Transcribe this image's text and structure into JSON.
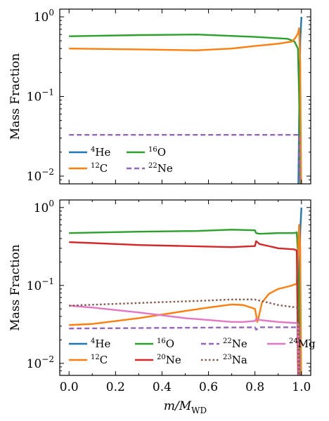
{
  "figure": {
    "xlabel_main": "m/M",
    "xlabel_sub": "WD"
  },
  "colors": {
    "He4": "#1f77b4",
    "C12": "#ff7f0e",
    "O16": "#2ca02c",
    "Ne22": "#9467bd",
    "Ne20": "#d62728",
    "Na23": "#8c564b",
    "Mg24": "#e377c2"
  },
  "chart_data": [
    {
      "type": "line",
      "ylabel": "Mass Fraction",
      "yscale": "log",
      "ylim": [
        0.008,
        1.25
      ],
      "xlim": [
        -0.04,
        1.04
      ],
      "x_ticks": [
        "0.0",
        "0.2",
        "0.4",
        "0.6",
        "0.8",
        "1.0"
      ],
      "y_ticks": [
        {
          "value": 1,
          "base": "10",
          "exp": "0"
        },
        {
          "value": 0.1,
          "base": "10",
          "exp": "−1"
        },
        {
          "value": 0.01,
          "base": "10",
          "exp": "−2"
        }
      ],
      "legend_position": "lower-left",
      "legend_columns": 2,
      "series": [
        {
          "key": "He4",
          "mass": "4",
          "element": "He",
          "dash": "solid",
          "points": [
            [
              0.0,
              0.0
            ],
            [
              0.985,
              0.0
            ],
            [
              0.99,
              0.05
            ],
            [
              0.995,
              0.5
            ],
            [
              1.0,
              1.0
            ]
          ]
        },
        {
          "key": "O16",
          "mass": "16",
          "element": "O",
          "dash": "solid",
          "points": [
            [
              0.0,
              0.57
            ],
            [
              0.3,
              0.59
            ],
            [
              0.55,
              0.6
            ],
            [
              0.8,
              0.56
            ],
            [
              0.94,
              0.53
            ],
            [
              0.97,
              0.49
            ],
            [
              0.985,
              0.4
            ],
            [
              0.99,
              0.1
            ],
            [
              0.995,
              0.01
            ],
            [
              1.0,
              0.0
            ]
          ]
        },
        {
          "key": "C12",
          "mass": "12",
          "element": "C",
          "dash": "solid",
          "points": [
            [
              0.0,
              0.4
            ],
            [
              0.3,
              0.39
            ],
            [
              0.55,
              0.38
            ],
            [
              0.7,
              0.4
            ],
            [
              0.8,
              0.43
            ],
            [
              0.9,
              0.46
            ],
            [
              0.96,
              0.49
            ],
            [
              0.975,
              0.55
            ],
            [
              0.985,
              0.62
            ],
            [
              0.99,
              0.72
            ],
            [
              0.995,
              0.25
            ],
            [
              1.0,
              0.0
            ]
          ]
        },
        {
          "key": "Ne22",
          "mass": "22",
          "element": "Ne",
          "dash": "dashed",
          "points": [
            [
              0.0,
              0.033
            ],
            [
              0.985,
              0.033
            ],
            [
              0.99,
              0.033
            ],
            [
              0.995,
              0.003
            ]
          ]
        }
      ]
    },
    {
      "type": "line",
      "ylabel": "Mass Fraction",
      "yscale": "log",
      "ylim": [
        0.007,
        1.25
      ],
      "xlim": [
        -0.04,
        1.04
      ],
      "x_ticks": [
        "0.0",
        "0.2",
        "0.4",
        "0.6",
        "0.8",
        "1.0"
      ],
      "y_ticks": [
        {
          "value": 1,
          "base": "10",
          "exp": "0"
        },
        {
          "value": 0.1,
          "base": "10",
          "exp": "−1"
        },
        {
          "value": 0.01,
          "base": "10",
          "exp": "−2"
        }
      ],
      "legend_position": "lower-left",
      "legend_columns": 4,
      "series": [
        {
          "key": "He4",
          "mass": "4",
          "element": "He",
          "dash": "solid",
          "points": [
            [
              0.0,
              0.0
            ],
            [
              0.985,
              0.0
            ],
            [
              0.99,
              0.05
            ],
            [
              0.995,
              0.5
            ],
            [
              1.0,
              1.0
            ]
          ]
        },
        {
          "key": "O16",
          "mass": "16",
          "element": "O",
          "dash": "solid",
          "points": [
            [
              0.0,
              0.47
            ],
            [
              0.3,
              0.49
            ],
            [
              0.55,
              0.5
            ],
            [
              0.7,
              0.52
            ],
            [
              0.8,
              0.51
            ],
            [
              0.805,
              0.47
            ],
            [
              0.82,
              0.46
            ],
            [
              0.9,
              0.47
            ],
            [
              0.97,
              0.47
            ],
            [
              0.98,
              0.48
            ],
            [
              0.985,
              0.25
            ],
            [
              0.99,
              0.05
            ],
            [
              0.995,
              0.01
            ],
            [
              1.0,
              0.0
            ]
          ]
        },
        {
          "key": "C12",
          "mass": "12",
          "element": "C",
          "dash": "solid",
          "points": [
            [
              0.0,
              0.031
            ],
            [
              0.1,
              0.032
            ],
            [
              0.3,
              0.038
            ],
            [
              0.5,
              0.047
            ],
            [
              0.6,
              0.052
            ],
            [
              0.7,
              0.057
            ],
            [
              0.75,
              0.056
            ],
            [
              0.8,
              0.05
            ],
            [
              0.805,
              0.042
            ],
            [
              0.81,
              0.034
            ],
            [
              0.815,
              0.038
            ],
            [
              0.83,
              0.06
            ],
            [
              0.86,
              0.078
            ],
            [
              0.9,
              0.09
            ],
            [
              0.95,
              0.098
            ],
            [
              0.98,
              0.105
            ],
            [
              0.985,
              0.25
            ],
            [
              0.99,
              0.6
            ],
            [
              0.995,
              0.3
            ],
            [
              1.0,
              0.0
            ]
          ]
        },
        {
          "key": "Ne20",
          "mass": "20",
          "element": "Ne",
          "dash": "solid",
          "points": [
            [
              0.0,
              0.36
            ],
            [
              0.1,
              0.35
            ],
            [
              0.3,
              0.33
            ],
            [
              0.5,
              0.32
            ],
            [
              0.7,
              0.31
            ],
            [
              0.8,
              0.32
            ],
            [
              0.805,
              0.37
            ],
            [
              0.82,
              0.34
            ],
            [
              0.9,
              0.3
            ],
            [
              0.97,
              0.29
            ],
            [
              0.98,
              0.28
            ],
            [
              0.985,
              0.01
            ],
            [
              0.99,
              0.0
            ]
          ]
        },
        {
          "key": "Ne22",
          "mass": "22",
          "element": "Ne",
          "dash": "dashed",
          "points": [
            [
              0.0,
              0.028
            ],
            [
              0.8,
              0.029
            ],
            [
              0.805,
              0.027
            ],
            [
              0.82,
              0.029
            ],
            [
              0.985,
              0.029
            ],
            [
              0.99,
              0.029
            ],
            [
              0.995,
              0.002
            ]
          ]
        },
        {
          "key": "Mg24",
          "mass": "24",
          "element": "Mg",
          "dash": "solid",
          "points": [
            [
              0.0,
              0.055
            ],
            [
              0.1,
              0.052
            ],
            [
              0.3,
              0.045
            ],
            [
              0.5,
              0.038
            ],
            [
              0.6,
              0.036
            ],
            [
              0.7,
              0.034
            ],
            [
              0.75,
              0.034
            ],
            [
              0.8,
              0.035
            ],
            [
              0.805,
              0.037
            ],
            [
              0.82,
              0.036
            ],
            [
              0.9,
              0.034
            ],
            [
              0.97,
              0.033
            ],
            [
              0.985,
              0.033
            ],
            [
              0.99,
              0.004
            ],
            [
              1.0,
              0.0
            ]
          ]
        },
        {
          "key": "Na23",
          "mass": "23",
          "element": "Na",
          "dash": "dotted",
          "points": [
            [
              0.0,
              0.055
            ],
            [
              0.2,
              0.058
            ],
            [
              0.4,
              0.061
            ],
            [
              0.6,
              0.064
            ],
            [
              0.7,
              0.066
            ],
            [
              0.8,
              0.066
            ],
            [
              0.805,
              0.065
            ],
            [
              0.82,
              0.064
            ],
            [
              0.9,
              0.056
            ],
            [
              0.98,
              0.052
            ],
            [
              0.985,
              0.05
            ],
            [
              0.99,
              0.004
            ],
            [
              1.0,
              0.0
            ]
          ]
        }
      ]
    }
  ]
}
